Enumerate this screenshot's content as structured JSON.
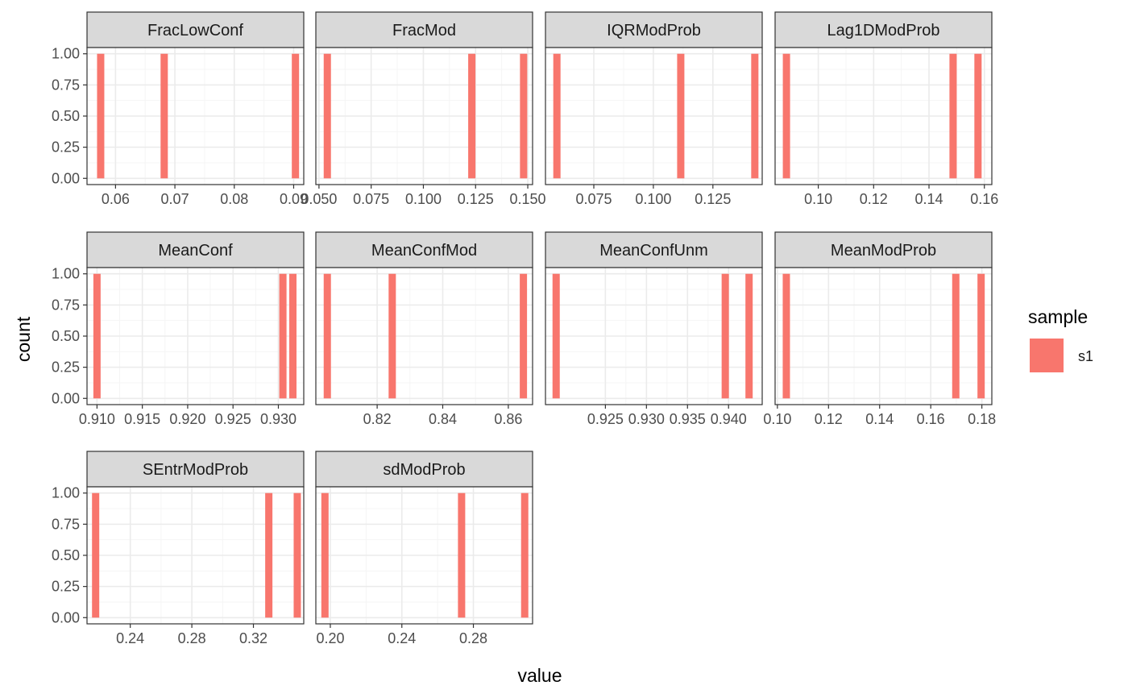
{
  "chart_data": {
    "type": "bar",
    "xlabel": "value",
    "ylabel": "count",
    "ylim": [
      0,
      1.0
    ],
    "y_ticks": [
      0,
      0.25,
      0.5,
      0.75,
      1.0
    ],
    "y_tick_labels": [
      "0.00",
      "0.25",
      "0.50",
      "0.75",
      "1.00"
    ],
    "grid": true,
    "legend": {
      "title": "sample",
      "position": "right",
      "entries": [
        {
          "name": "s1",
          "color": "#F8766D"
        }
      ]
    },
    "colors": {
      "bar": "#F8766D",
      "strip": "#d9d9d9",
      "grid_major": "#ebebeb",
      "grid_minor": "#f5f5f5",
      "panel_border": "#333333"
    },
    "panels": [
      {
        "name": "FracLowConf",
        "xlim": [
          0.0552,
          0.0917
        ],
        "values": [
          0.0575,
          0.0682,
          0.0903
        ],
        "counts": [
          1,
          1,
          1
        ],
        "ticks": [
          0.06,
          0.07,
          0.08,
          0.09
        ],
        "tick_labels": [
          "0.06",
          "0.07",
          "0.08",
          "0.09"
        ]
      },
      {
        "name": "FracMod",
        "xlim": [
          0.0485,
          0.1523
        ],
        "values": [
          0.054,
          0.1232,
          0.148
        ],
        "counts": [
          1,
          1,
          1
        ],
        "ticks": [
          0.05,
          0.075,
          0.1,
          0.125,
          0.15
        ],
        "tick_labels": [
          "0.050",
          "0.075",
          "0.100",
          "0.125",
          "0.150"
        ]
      },
      {
        "name": "IQRModProb",
        "xlim": [
          0.0547,
          0.1457
        ],
        "values": [
          0.0595,
          0.1115,
          0.1426
        ],
        "counts": [
          1,
          1,
          1
        ],
        "ticks": [
          0.075,
          0.1,
          0.125
        ],
        "tick_labels": [
          "0.075",
          "0.100",
          "0.125"
        ]
      },
      {
        "name": "Lag1DModProb",
        "xlim": [
          0.0844,
          0.1627
        ],
        "values": [
          0.0885,
          0.1487,
          0.1577
        ],
        "counts": [
          1,
          1,
          1
        ],
        "ticks": [
          0.1,
          0.12,
          0.14,
          0.16
        ],
        "tick_labels": [
          "0.10",
          "0.12",
          "0.14",
          "0.16"
        ]
      },
      {
        "name": "MeanConf",
        "xlim": [
          0.9089,
          0.9328
        ],
        "values": [
          0.91,
          0.9305,
          0.9316
        ],
        "counts": [
          1,
          1,
          1
        ],
        "ticks": [
          0.91,
          0.915,
          0.92,
          0.925,
          0.93
        ],
        "tick_labels": [
          "0.910",
          "0.915",
          "0.920",
          "0.925",
          "0.930"
        ]
      },
      {
        "name": "MeanConfMod",
        "xlim": [
          0.8013,
          0.8674
        ],
        "values": [
          0.8048,
          0.8246,
          0.8646
        ],
        "counts": [
          1,
          1,
          1
        ],
        "ticks": [
          0.82,
          0.84,
          0.86
        ],
        "tick_labels": [
          "0.82",
          "0.84",
          "0.86"
        ]
      },
      {
        "name": "MeanConfUnm",
        "xlim": [
          0.9177,
          0.9441
        ],
        "values": [
          0.919,
          0.9396,
          0.9425
        ],
        "counts": [
          1,
          1,
          1
        ],
        "ticks": [
          0.925,
          0.93,
          0.935,
          0.94
        ],
        "tick_labels": [
          "0.925",
          "0.930",
          "0.935",
          "0.940"
        ]
      },
      {
        "name": "MeanModProb",
        "xlim": [
          0.0991,
          0.1839
        ],
        "values": [
          0.1035,
          0.1698,
          0.1797
        ],
        "counts": [
          1,
          1,
          1
        ],
        "ticks": [
          0.1,
          0.12,
          0.14,
          0.16,
          0.18
        ],
        "tick_labels": [
          "0.10",
          "0.12",
          "0.14",
          "0.16",
          "0.18"
        ]
      },
      {
        "name": "SEntrModProb",
        "xlim": [
          0.2119,
          0.3527
        ],
        "values": [
          0.2175,
          0.33,
          0.3485
        ],
        "counts": [
          1,
          1,
          1
        ],
        "ticks": [
          0.24,
          0.28,
          0.32
        ],
        "tick_labels": [
          "0.24",
          "0.28",
          "0.32"
        ]
      },
      {
        "name": "sdModProb",
        "xlim": [
          0.1919,
          0.3131
        ],
        "values": [
          0.197,
          0.2734,
          0.3087
        ],
        "counts": [
          1,
          1,
          1
        ],
        "ticks": [
          0.2,
          0.24,
          0.28
        ],
        "tick_labels": [
          "0.20",
          "0.24",
          "0.28"
        ]
      }
    ]
  }
}
